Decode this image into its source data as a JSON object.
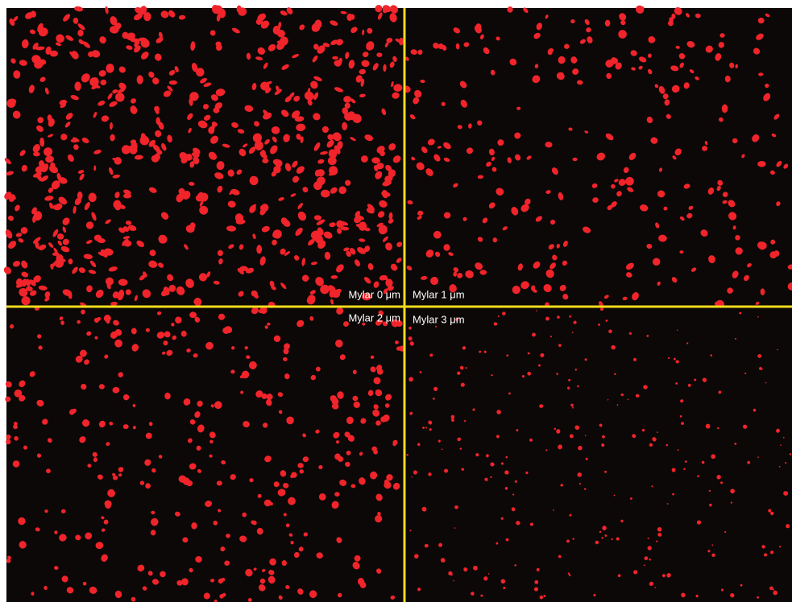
{
  "panels": [
    {
      "label": "Mylar 0 μm"
    },
    {
      "label": "Mylar 1 μm"
    },
    {
      "label": "Mylar 2 μm"
    },
    {
      "label": "Mylar 3 μm"
    }
  ]
}
